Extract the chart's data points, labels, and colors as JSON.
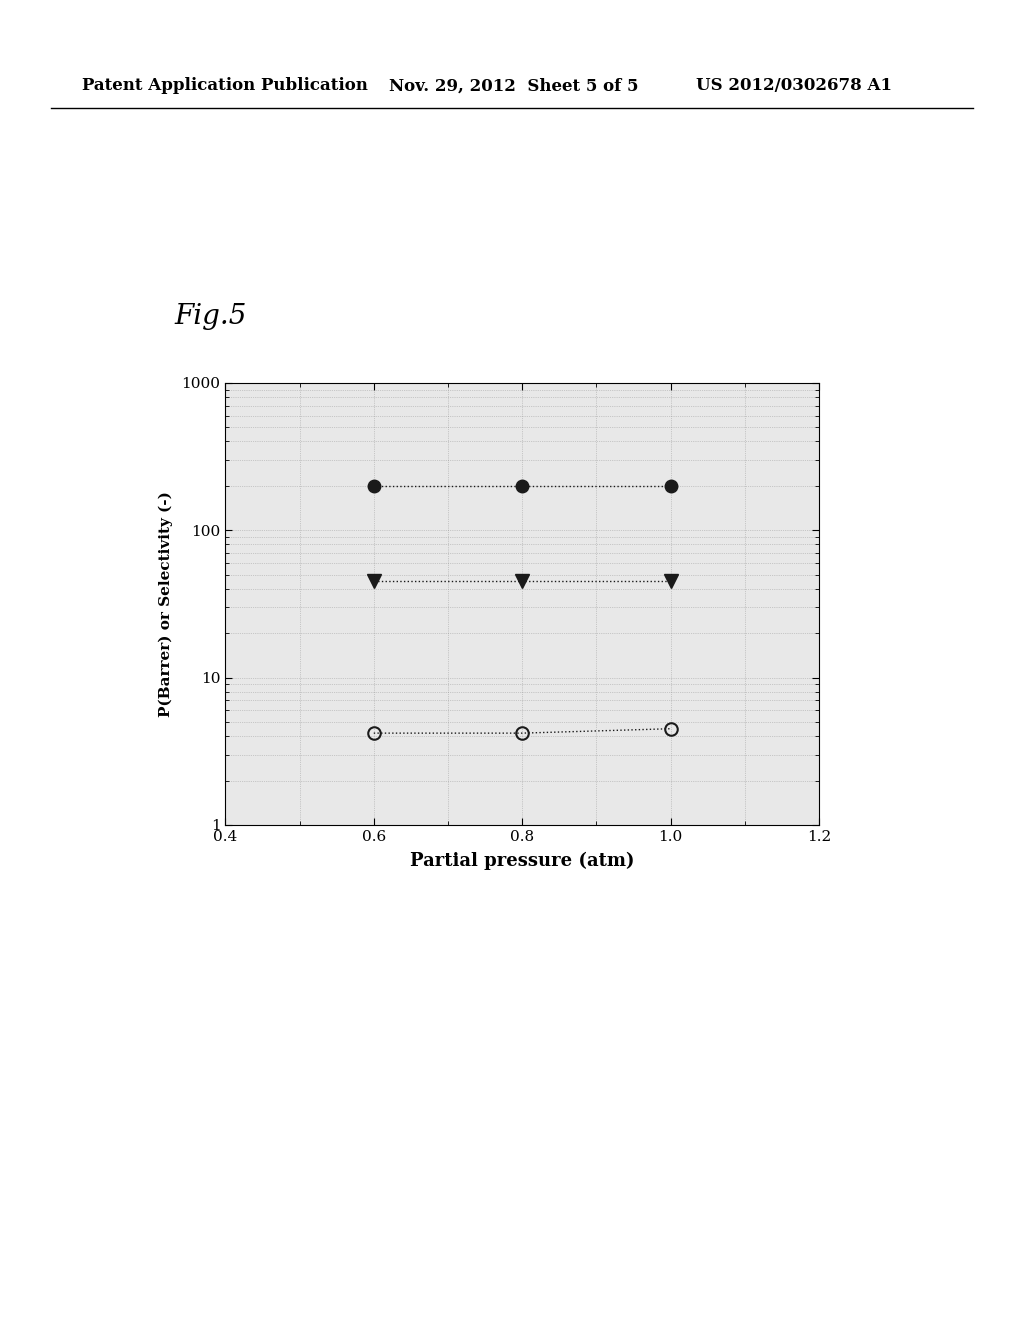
{
  "xlabel": "Partial pressure (atm)",
  "ylabel": "P(Barrer) or Selectivity (-)",
  "xlim": [
    0.4,
    1.2
  ],
  "ylim": [
    1,
    1000
  ],
  "x_ticks": [
    0.4,
    0.6,
    0.8,
    1.0,
    1.2
  ],
  "y_ticks": [
    1,
    10,
    100,
    1000
  ],
  "y_tick_labels": [
    "1",
    "10",
    "100",
    "1000"
  ],
  "series": [
    {
      "x": [
        0.6,
        0.8,
        1.0
      ],
      "y": [
        200,
        200,
        200
      ],
      "marker": "o",
      "filled": true,
      "color": "#1a1a1a",
      "markersize": 9,
      "linewidth": 1.0,
      "linestyle": "dotted"
    },
    {
      "x": [
        0.6,
        0.8,
        1.0
      ],
      "y": [
        45,
        45,
        45
      ],
      "marker": "v",
      "filled": true,
      "color": "#1a1a1a",
      "markersize": 10,
      "linewidth": 1.0,
      "linestyle": "dotted"
    },
    {
      "x": [
        0.6,
        0.8,
        1.0
      ],
      "y": [
        4.2,
        4.2,
        4.5
      ],
      "marker": "o",
      "filled": false,
      "color": "#1a1a1a",
      "markersize": 9,
      "linewidth": 1.0,
      "linestyle": "dotted"
    }
  ],
  "fig_background": "#ffffff",
  "plot_area_color": "#e8e8e8",
  "header_left": "Patent Application Publication",
  "header_mid": "Nov. 29, 2012  Sheet 5 of 5",
  "header_right": "US 2012/0302678 A1",
  "fig_label": "Fig.5",
  "header_fontsize": 12,
  "fig_label_fontsize": 20,
  "axis_fontsize": 11,
  "xlabel_fontsize": 13,
  "ylabel_fontsize": 11
}
